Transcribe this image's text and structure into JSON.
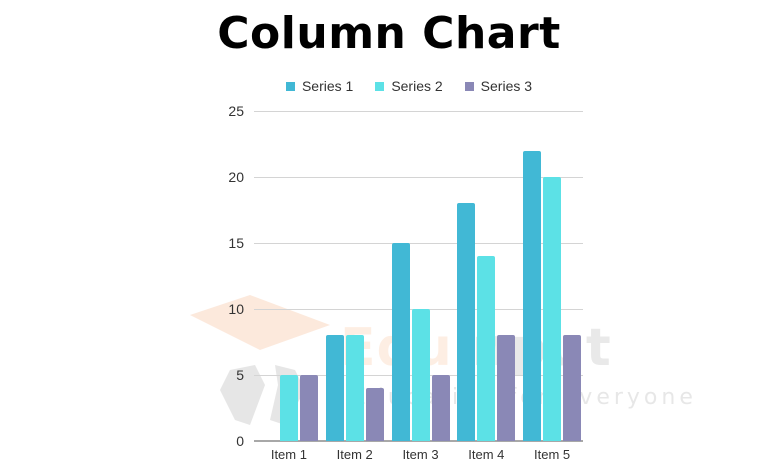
{
  "title": "Column Chart",
  "watermark": {
    "brand_part1": "Edu",
    "brand_part2": "input",
    "tagline": "Education for everyone"
  },
  "chart_data": {
    "type": "bar",
    "title": "Column Chart",
    "xlabel": "",
    "ylabel": "",
    "categories": [
      "Item 1",
      "Item 2",
      "Item 3",
      "Item 4",
      "Item 5"
    ],
    "series": [
      {
        "name": "Series 1",
        "color": "#41b8d5",
        "values": [
          0,
          8,
          15,
          18,
          22
        ]
      },
      {
        "name": "Series 2",
        "color": "#5ce1e6",
        "values": [
          5,
          8,
          10,
          14,
          20
        ]
      },
      {
        "name": "Series 3",
        "color": "#8a88b6",
        "values": [
          5,
          4,
          5,
          8,
          8
        ]
      }
    ],
    "ylim": [
      0,
      25
    ],
    "yticks": [
      0,
      5,
      10,
      15,
      20,
      25
    ],
    "grid": true,
    "legend_position": "top"
  }
}
